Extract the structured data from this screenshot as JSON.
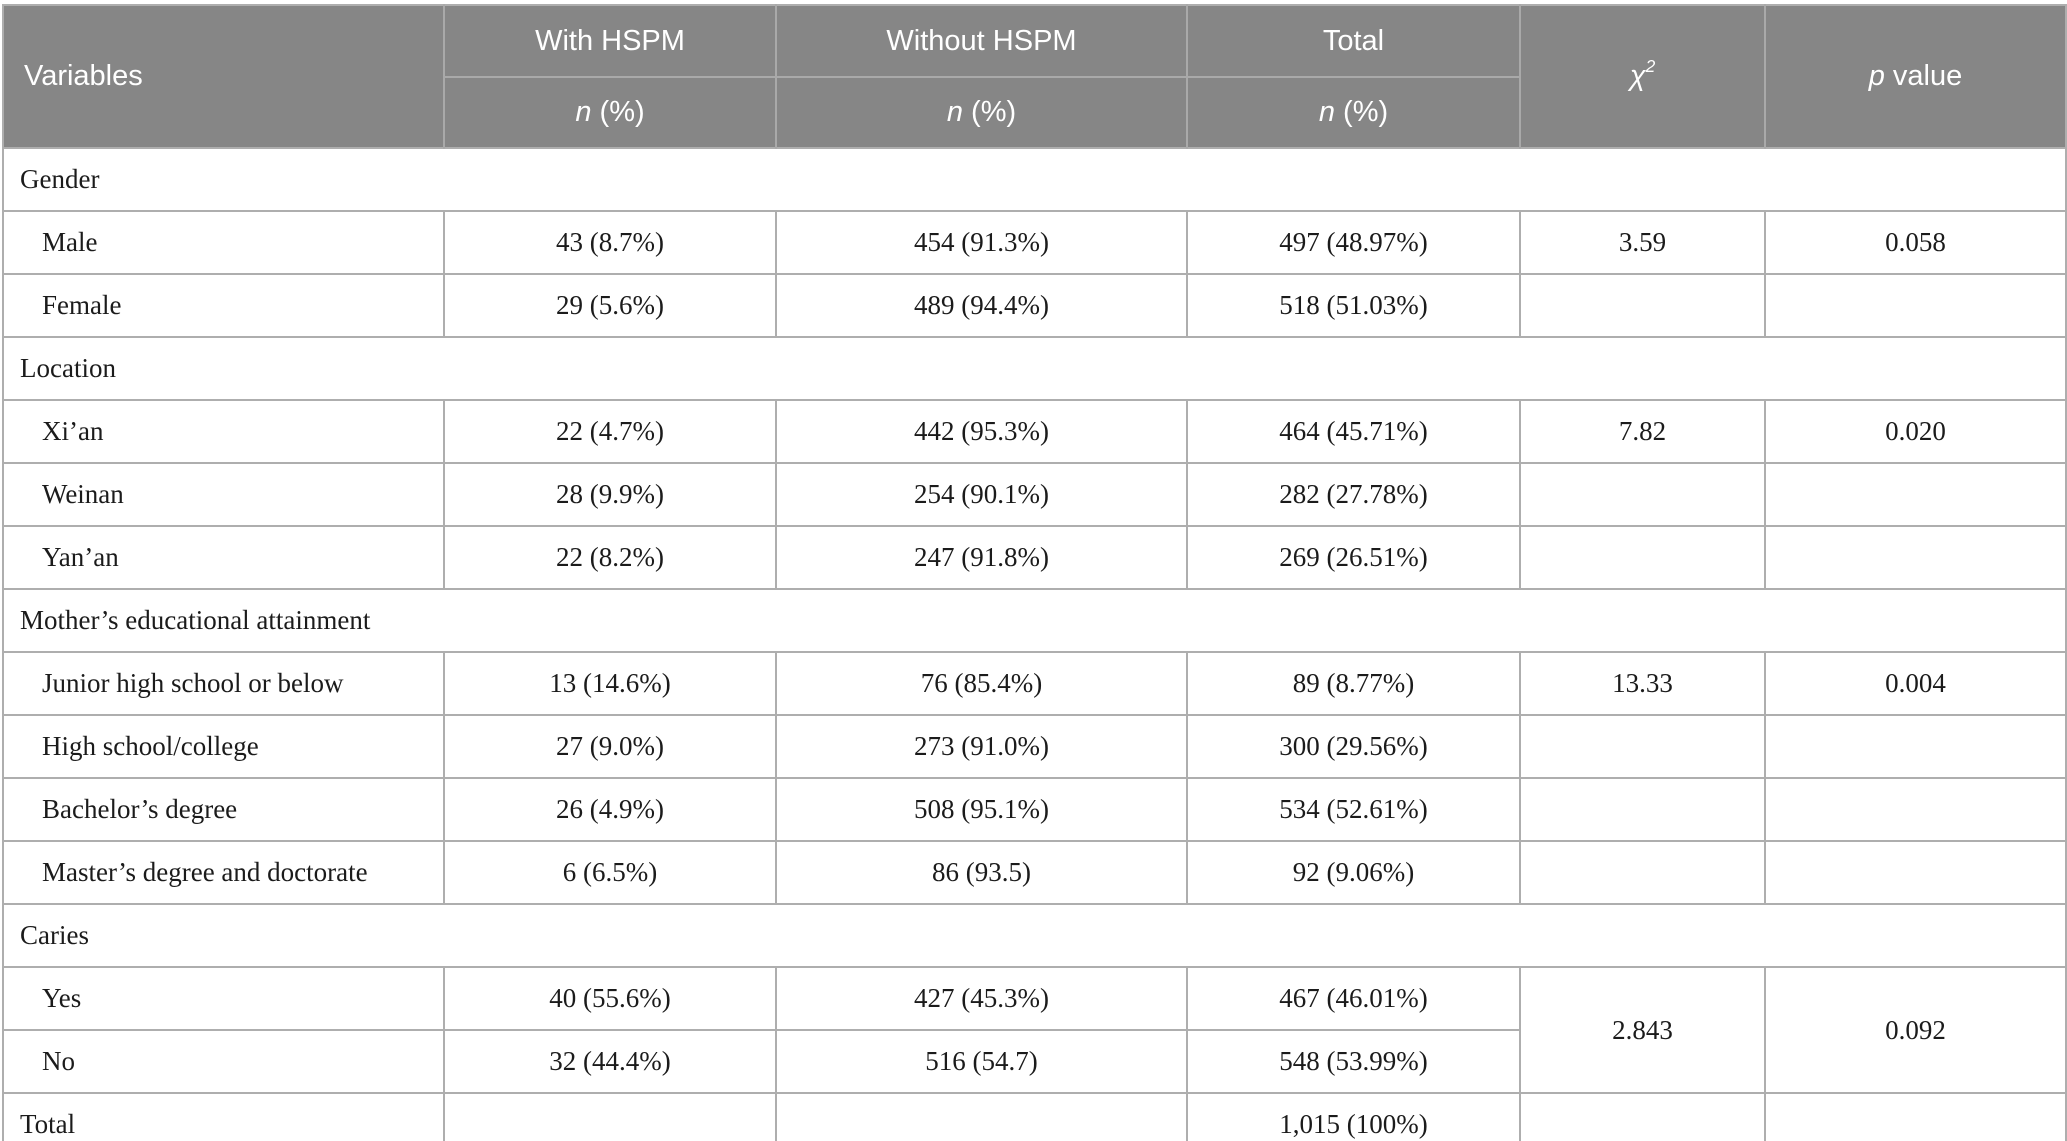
{
  "table": {
    "header": {
      "variables": "Variables",
      "groups": [
        {
          "label": "With HSPM"
        },
        {
          "label": "Without HSPM"
        },
        {
          "label": "Total"
        }
      ],
      "sub_italic": "n",
      "sub_rest": " (%)",
      "chi_base": "χ",
      "chi_sup": "2",
      "p_italic": "p",
      "p_rest": " value"
    },
    "rows": [
      {
        "type": "section",
        "label": "Gender"
      },
      {
        "type": "data",
        "label": "Male",
        "cells": [
          "43 (8.7%)",
          "454 (91.3%)",
          "497 (48.97%)",
          "3.59",
          "0.058"
        ]
      },
      {
        "type": "data",
        "label": "Female",
        "cells": [
          "29 (5.6%)",
          "489 (94.4%)",
          "518 (51.03%)",
          "",
          ""
        ]
      },
      {
        "type": "section",
        "label": "Location"
      },
      {
        "type": "data",
        "label": "Xi’an",
        "cells": [
          "22 (4.7%)",
          "442 (95.3%)",
          "464 (45.71%)",
          "7.82",
          "0.020"
        ]
      },
      {
        "type": "data",
        "label": "Weinan",
        "cells": [
          "28 (9.9%)",
          "254 (90.1%)",
          "282 (27.78%)",
          "",
          ""
        ]
      },
      {
        "type": "data",
        "label": "Yan’an",
        "cells": [
          "22 (8.2%)",
          "247 (91.8%)",
          "269 (26.51%)",
          "",
          ""
        ]
      },
      {
        "type": "section",
        "label": "Mother’s educational attainment"
      },
      {
        "type": "data",
        "label": "Junior high school or below",
        "cells": [
          "13 (14.6%)",
          "76 (85.4%)",
          "89 (8.77%)",
          "13.33",
          "0.004"
        ]
      },
      {
        "type": "data",
        "label": "High school/college",
        "cells": [
          "27 (9.0%)",
          "273 (91.0%)",
          "300 (29.56%)",
          "",
          ""
        ]
      },
      {
        "type": "data",
        "label": "Bachelor’s degree",
        "cells": [
          "26 (4.9%)",
          "508 (95.1%)",
          "534 (52.61%)",
          "",
          ""
        ]
      },
      {
        "type": "data",
        "label": "Master’s degree and doctorate",
        "cells": [
          "6 (6.5%)",
          "86 (93.5)",
          "92 (9.06%)",
          "",
          ""
        ]
      },
      {
        "type": "section",
        "label": "Caries"
      },
      {
        "type": "data",
        "label": "Yes",
        "cells": [
          "40 (55.6%)",
          "427 (45.3%)",
          "467 (46.01%)",
          {
            "text": "2.843",
            "rowspan": 2
          },
          {
            "text": "0.092",
            "rowspan": 2
          }
        ]
      },
      {
        "type": "data",
        "label": "No",
        "cells": [
          "32 (44.4%)",
          "516 (54.7)",
          "548 (53.99%)"
        ]
      },
      {
        "type": "total",
        "label": "Total",
        "cells": [
          "",
          "",
          "1,015 (100%)",
          "",
          ""
        ]
      }
    ],
    "colors": {
      "header_bg": "#868686",
      "header_text": "#ffffff",
      "header_divider": "#a9a9a9",
      "body_border": "#aeaeae",
      "body_text": "#1b1b1b"
    }
  }
}
